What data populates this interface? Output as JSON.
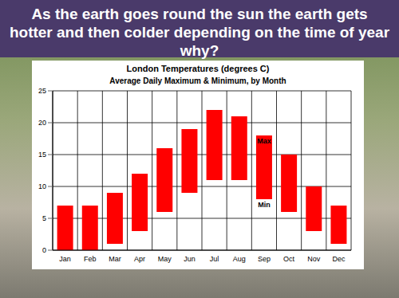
{
  "header": {
    "title": "As the earth goes round the sun the earth gets hotter and then colder depending on the time of year why?"
  },
  "chart_data": {
    "type": "bar",
    "title": "London Temperatures (degrees C)",
    "subtitle": "Average Daily Maximum & Minimum, by Month",
    "categories": [
      "Jan",
      "Feb",
      "Mar",
      "Apr",
      "May",
      "Jun",
      "Jul",
      "Aug",
      "Sep",
      "Oct",
      "Nov",
      "Dec"
    ],
    "series": [
      {
        "name": "Max",
        "color": "#ff0000",
        "values": [
          7,
          7,
          9,
          12,
          16,
          19,
          22,
          21,
          18,
          15,
          10,
          7
        ]
      },
      {
        "name": "Min",
        "color": "#ff0000",
        "values": [
          0,
          0,
          1,
          3,
          6,
          9,
          11,
          11,
          8,
          6,
          3,
          1
        ]
      }
    ],
    "annotations": [
      {
        "text": "Max",
        "x": "Sep",
        "y": 18
      },
      {
        "text": "Min",
        "x": "Sep",
        "y": 8
      }
    ],
    "ylim": [
      0,
      25
    ],
    "yticks": [
      0,
      5,
      10,
      15,
      20,
      25
    ],
    "grid": true
  }
}
